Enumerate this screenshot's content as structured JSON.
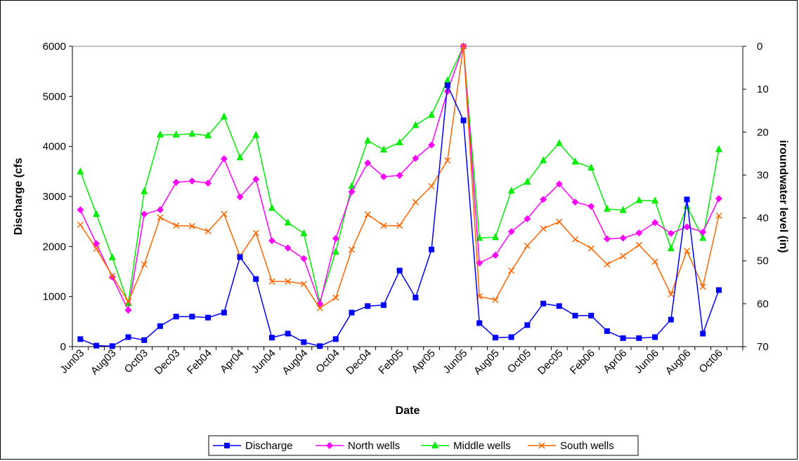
{
  "chart_data": {
    "type": "line",
    "title": "",
    "xlabel": "Date",
    "ylabel": "Discharge (cfs",
    "y2label": "iroundwater level (in)",
    "ylim": [
      0,
      6000
    ],
    "y2lim": [
      0,
      70
    ],
    "y2_inverted": true,
    "yticks": [
      "0",
      "1000",
      "2000",
      "3000",
      "4000",
      "5000",
      "6000"
    ],
    "y2ticks": [
      "0",
      "10",
      "20",
      "30",
      "40",
      "50",
      "60",
      "70"
    ],
    "x_tick_labels": [
      "Jun03",
      "Aug03",
      "Oct03",
      "Dec03",
      "Feb04",
      "Apr04",
      "Jun04",
      "Aug04",
      "Oct04",
      "Dec04",
      "Feb05",
      "Apr05",
      "Jun05",
      "Aug05",
      "Oct05",
      "Dec05",
      "Feb06",
      "Apr06",
      "Jun06",
      "Aug06",
      "Oct06"
    ],
    "x": [
      "Jun03",
      "Jul03",
      "Aug03",
      "Sep03",
      "Oct03",
      "Nov03",
      "Dec03",
      "Jan04",
      "Feb04",
      "Mar04",
      "Apr04",
      "May04",
      "Jun04",
      "Jul04",
      "Aug04",
      "Sep04",
      "Oct04",
      "Nov04",
      "Dec04",
      "Jan05",
      "Feb05",
      "Mar05",
      "Apr05",
      "May05",
      "Jun05",
      "Jul05",
      "Aug05",
      "Sep05",
      "Oct05",
      "Nov05",
      "Dec05",
      "Jan06",
      "Feb06",
      "Mar06",
      "Apr06",
      "May06",
      "Jun06",
      "Jul06",
      "Aug06",
      "Sep06",
      "Oct06",
      "Nov06"
    ],
    "legend_position": "bottom",
    "grid": false,
    "series": [
      {
        "name": "Discharge",
        "axis": "left",
        "color": "#0000ff",
        "marker": "square",
        "values": [
          150,
          20,
          10,
          190,
          130,
          410,
          600,
          600,
          580,
          680,
          1790,
          1350,
          180,
          260,
          90,
          10,
          150,
          680,
          810,
          830,
          1520,
          980,
          1940,
          5220,
          4520,
          470,
          180,
          190,
          430,
          860,
          810,
          620,
          620,
          310,
          170,
          170,
          190,
          540,
          2940,
          260,
          1130,
          null
        ]
      },
      {
        "name": "North wells",
        "axis": "right",
        "color": "#ff00ff",
        "marker": "diamond",
        "values": [
          38.1,
          46,
          53.8,
          61.5,
          39.1,
          38.1,
          31.7,
          31.4,
          31.9,
          26.2,
          35.1,
          31,
          45.3,
          47,
          49.5,
          60,
          44.8,
          33.9,
          27.2,
          30.4,
          30.1,
          26.1,
          23,
          10.5,
          0,
          50.5,
          48.7,
          43.2,
          40.2,
          35.7,
          32.1,
          36.3,
          37.3,
          44.9,
          44.7,
          43.5,
          41.1,
          43.6,
          42.1,
          43.3,
          35.5,
          null
        ]
      },
      {
        "name": "Middle wells",
        "axis": "right",
        "color": "#00ee00",
        "marker": "triangle",
        "values": [
          29.2,
          39.1,
          49.2,
          59.9,
          33.8,
          20.6,
          20.6,
          20.4,
          20.8,
          16.4,
          25.9,
          20.7,
          37.7,
          41.1,
          43.6,
          59.6,
          47.9,
          32.6,
          22,
          24.1,
          22.4,
          18.4,
          16,
          8,
          0,
          44.7,
          44.5,
          33.7,
          31.6,
          26.6,
          22.6,
          26.9,
          28.3,
          37.9,
          38.2,
          35.9,
          36,
          47.1,
          37.3,
          44.7,
          24,
          null
        ]
      },
      {
        "name": "South wells",
        "axis": "right",
        "color": "#ff6600",
        "marker": "x",
        "values": [
          41.6,
          47.2,
          53.5,
          59.5,
          50.8,
          39.9,
          41.8,
          41.9,
          43.1,
          39.1,
          48.9,
          43.5,
          54.8,
          54.8,
          55.4,
          61,
          58.6,
          47.4,
          39.2,
          41.8,
          41.8,
          36.3,
          32.6,
          26.6,
          0,
          58.3,
          59.1,
          52.3,
          46.5,
          42.5,
          40.9,
          45,
          47.1,
          50.8,
          48.9,
          46.3,
          50.2,
          57.8,
          47.7,
          56,
          39.5,
          null
        ]
      }
    ]
  },
  "legend": {
    "items": [
      {
        "label": "Discharge",
        "color": "#0000ff",
        "marker": "square"
      },
      {
        "label": "North wells",
        "color": "#ff00ff",
        "marker": "diamond"
      },
      {
        "label": "Middle wells",
        "color": "#00ee00",
        "marker": "triangle"
      },
      {
        "label": "South wells",
        "color": "#ff6600",
        "marker": "x"
      }
    ]
  }
}
